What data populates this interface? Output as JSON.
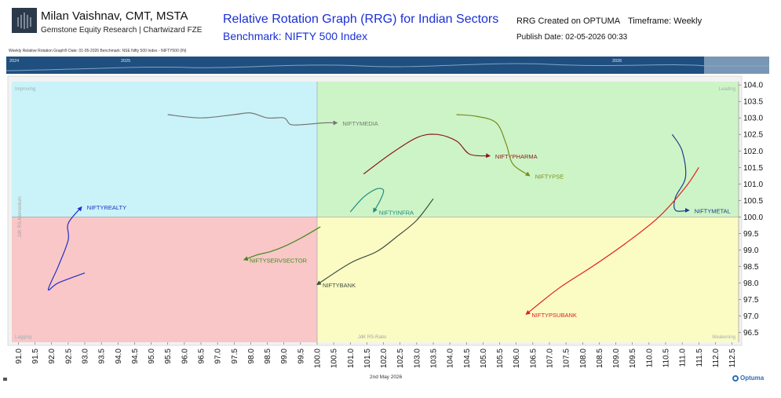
{
  "header": {
    "author": "Milan Vaishnav, CMT, MSTA",
    "firm": "Gemstone Equity Research | Chartwizard FZE",
    "title": "Relative Rotation Graph (RRG) for Indian Sectors",
    "subtitle": "Benchmark: NIFTY 500 Index",
    "created": "RRG Created on OPTUMA",
    "timeframe": "Timeframe: Weekly",
    "publish": "Publish Date: 02-05-2026 00:33"
  },
  "strip": {
    "caption": "Weekly Relative Rotation Graph®   Date: 01-05-2026  Benchmark: NSE Nifty 500 Index - NIFTY500 (IN)",
    "years": [
      "2024",
      "2025",
      "2026"
    ]
  },
  "footer": {
    "date": "2nd May 2026",
    "brand": "Optuma"
  },
  "colors": {
    "improving": "#c9f3f8",
    "leading": "#cdf4c6",
    "weakening": "#fbfbc4",
    "lagging": "#f9c7c7",
    "strip": "#1f4f7f"
  },
  "chart_data": {
    "type": "scatter",
    "title": "Relative Rotation Graph (RRG) for Indian Sectors",
    "xlim": [
      90.8,
      112.7
    ],
    "ylim": [
      96.2,
      104.1
    ],
    "x_ticks": [
      "91.0",
      "91.5",
      "92.0",
      "92.5",
      "93.0",
      "93.5",
      "94.0",
      "94.5",
      "95.0",
      "95.5",
      "96.0",
      "96.5",
      "97.0",
      "97.5",
      "98.0",
      "98.5",
      "99.0",
      "99.5",
      "100.0",
      "100.5",
      "101.0",
      "101.5",
      "102.0",
      "102.5",
      "103.0",
      "103.5",
      "104.0",
      "104.5",
      "105.0",
      "105.5",
      "106.0",
      "106.5",
      "107.0",
      "107.5",
      "108.0",
      "108.5",
      "109.0",
      "109.5",
      "110.0",
      "110.5",
      "111.0",
      "111.5",
      "112.0",
      "112.5"
    ],
    "y_ticks": [
      "96.5",
      "97.0",
      "97.5",
      "98.0",
      "98.5",
      "99.0",
      "99.5",
      "100.0",
      "100.5",
      "101.0",
      "101.5",
      "102.0",
      "102.5",
      "103.0",
      "103.5",
      "104.0"
    ],
    "quadrants": {
      "improving": "Improving",
      "leading": "Leading",
      "weakening": "Weakening",
      "lagging": "Lagging"
    },
    "xlabel": "JdK RS-Ratio",
    "ylabel": "JdK RS-Momentum",
    "series": [
      {
        "name": "NIFTYMEDIA",
        "color": "#777777",
        "x": [
          95.5,
          96.5,
          97.5,
          98.0,
          98.5,
          99.0,
          99.2,
          99.6,
          100.2,
          100.6
        ],
        "y": [
          103.1,
          103.0,
          103.1,
          103.15,
          103.0,
          103.0,
          102.8,
          102.8,
          102.85,
          102.85
        ]
      },
      {
        "name": "NIFTYPHARMA",
        "color": "#8b1a1a",
        "x": [
          101.4,
          102.2,
          103.0,
          103.6,
          104.2,
          104.6,
          105.2
        ],
        "y": [
          101.3,
          101.9,
          102.4,
          102.5,
          102.3,
          101.9,
          101.85
        ]
      },
      {
        "name": "NIFTYPSE",
        "color": "#7a8c1f",
        "x": [
          104.2,
          104.8,
          105.4,
          105.7,
          105.9,
          106.4
        ],
        "y": [
          103.1,
          103.05,
          102.85,
          102.2,
          101.6,
          101.25
        ]
      },
      {
        "name": "NIFTYINFRA",
        "color": "#1e8c80",
        "x": [
          101.0,
          101.4,
          101.8,
          102.0,
          101.9,
          101.7
        ],
        "y": [
          100.15,
          100.6,
          100.85,
          100.8,
          100.5,
          100.15
        ]
      },
      {
        "name": "NIFTYBANK",
        "color": "#3f4f3f",
        "x": [
          103.5,
          103.0,
          102.4,
          101.8,
          101.0,
          100.0
        ],
        "y": [
          100.55,
          99.9,
          99.4,
          98.95,
          98.6,
          97.95
        ]
      },
      {
        "name": "NIFTYSERVSECTOR",
        "color": "#3f8a1f",
        "x": [
          100.1,
          99.5,
          99.0,
          98.6,
          98.2,
          97.8
        ],
        "y": [
          99.7,
          99.35,
          99.1,
          98.95,
          98.85,
          98.7
        ]
      },
      {
        "name": "NIFTYREALTY",
        "color": "#2330c8",
        "x": [
          93.0,
          92.2,
          91.9,
          92.2,
          92.5,
          92.5,
          92.9
        ],
        "y": [
          98.3,
          98.0,
          97.8,
          98.5,
          99.3,
          99.8,
          100.3
        ]
      },
      {
        "name": "NIFTYMETAL",
        "color": "#1e3a90",
        "x": [
          110.7,
          111.0,
          111.1,
          110.8,
          110.8,
          111.2
        ],
        "y": [
          102.5,
          102.0,
          101.2,
          100.6,
          100.2,
          100.2
        ]
      },
      {
        "name": "NIFTYPSUBANK",
        "color": "#e02020",
        "x": [
          111.5,
          111.1,
          110.3,
          109.3,
          108.3,
          107.3,
          106.3
        ],
        "y": [
          101.5,
          100.9,
          100.0,
          99.2,
          98.5,
          97.85,
          97.05
        ]
      }
    ]
  }
}
